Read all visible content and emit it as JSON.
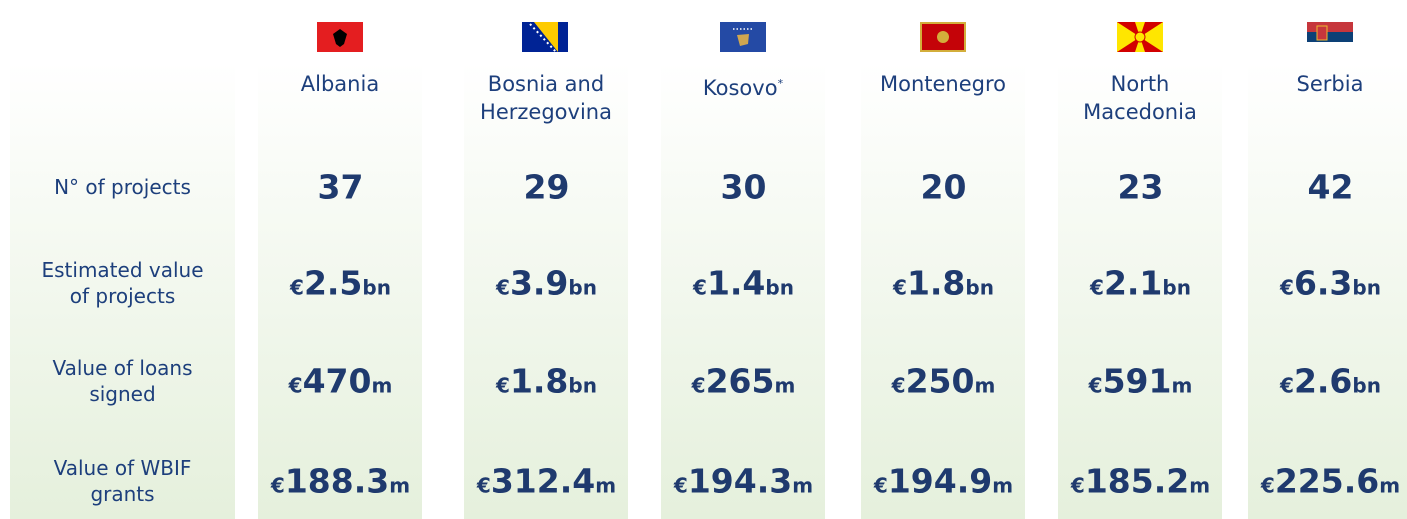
{
  "table": {
    "countries": [
      {
        "name": "Albania"
      },
      {
        "name": "Bosnia and Herzegovina"
      },
      {
        "name": "Kosovo",
        "note": "*"
      },
      {
        "name": "Montenegro"
      },
      {
        "name": "North Macedonia"
      },
      {
        "name": "Serbia"
      }
    ],
    "rows": [
      {
        "label": "N° of projects",
        "values": [
          "37",
          "29",
          "30",
          "20",
          "23",
          "42"
        ]
      },
      {
        "label": "Estimated value of projects",
        "values": [
          "€2.5bn",
          "€3.9bn",
          "€1.4bn",
          "€1.8bn",
          "€2.1bn",
          "€6.3bn"
        ]
      },
      {
        "label": "Value of loans signed",
        "values": [
          "€470m",
          "€1.8bn",
          "€265m",
          "€250m",
          "€591m",
          "€2.6bn"
        ]
      },
      {
        "label": "Value of WBIF grants",
        "values": [
          "€188.3m",
          "€312.4m",
          "€194.3m",
          "€194.9m",
          "€185.2m",
          "€225.6m"
        ]
      }
    ]
  }
}
